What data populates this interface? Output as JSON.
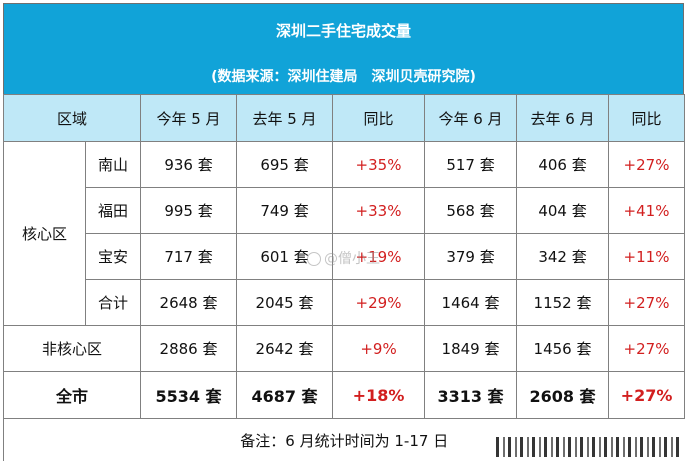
{
  "title": "深圳二手住宅成交量",
  "subtitle": "(数据来源：深圳住建局　深圳贝壳研究院)",
  "headers": [
    "区域",
    "今年 5 月",
    "去年 5 月",
    "同比",
    "今年 6 月",
    "去年 6 月",
    "同比"
  ],
  "core_group": "核心区",
  "core_rows": [
    {
      "name": "南山",
      "m5_now": "936 套",
      "m5_last": "695 套",
      "m5_yoy": "+35%",
      "m6_now": "517 套",
      "m6_last": "406 套",
      "m6_yoy": "+27%"
    },
    {
      "name": "福田",
      "m5_now": "995 套",
      "m5_last": "749 套",
      "m5_yoy": "+33%",
      "m6_now": "568 套",
      "m6_last": "404 套",
      "m6_yoy": "+41%"
    },
    {
      "name": "宝安",
      "m5_now": "717 套",
      "m5_last": "601 套",
      "m5_yoy": "+19%",
      "m6_now": "379 套",
      "m6_last": "342 套",
      "m6_yoy": "+11%"
    },
    {
      "name": "合计",
      "m5_now": "2648 套",
      "m5_last": "2045 套",
      "m5_yoy": "+29%",
      "m6_now": "1464 套",
      "m6_last": "1152 套",
      "m6_yoy": "+27%"
    }
  ],
  "noncore": {
    "name": "非核心区",
    "m5_now": "2886 套",
    "m5_last": "2642 套",
    "m5_yoy": "+9%",
    "m6_now": "1849 套",
    "m6_last": "1456 套",
    "m6_yoy": "+27%"
  },
  "total": {
    "name": "全市",
    "m5_now": "5534 套",
    "m5_last": "4687 套",
    "m5_yoy": "+18%",
    "m6_now": "3313 套",
    "m6_last": "2608 套",
    "m6_yoy": "+27%"
  },
  "note": "备注：6 月统计时间为 1-17 日",
  "watermark": "@僧小王",
  "colors": {
    "title_band": "#11a3d8",
    "header_row": "#bfe8f7",
    "yoy_red": "#d21f1f"
  }
}
